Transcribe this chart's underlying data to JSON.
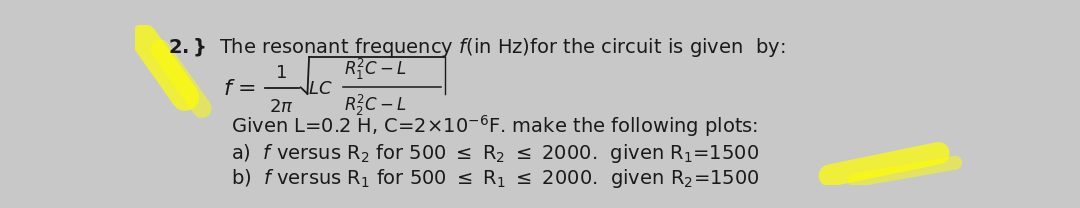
{
  "background_color": "#c8c8c8",
  "text_color": "#1a1a1a",
  "highlight_color": "#ffff00",
  "font_size_main": 14,
  "font_size_formula": 13,
  "fig_width": 10.8,
  "fig_height": 2.08,
  "dpi": 100,
  "title_line": "The resonant frequency ",
  "given_line": "Given L=0.2 H, C=2×10⁻⁶F. make the following plots:",
  "plot_a": "a)  f versus R₂ for 500 ≤ R₂ ≤ 2000.  given R₁=1500",
  "plot_b": "b)  f versus R₁ for 500 ≤ R₁ ≤ 2000.  given R₂=1500"
}
